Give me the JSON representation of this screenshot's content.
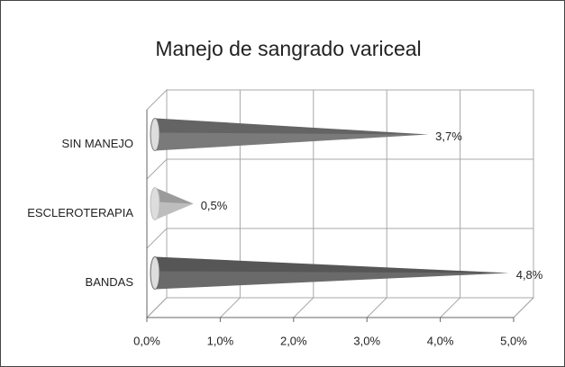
{
  "chart_data": {
    "type": "bar3d-horizontal-cone",
    "title": "Manejo de sangrado variceal",
    "categories": [
      "SIN MANEJO",
      "ESCLEROTERAPIA",
      "BANDAS"
    ],
    "values": [
      3.7,
      0.5,
      4.8
    ],
    "value_labels": [
      "3,7%",
      "0,5%",
      "4,8%"
    ],
    "colors": [
      "#7a7a7a",
      "#bdbdbd",
      "#6a6a6a"
    ],
    "xlim": [
      0,
      5
    ],
    "xticks": [
      {
        "value": 0,
        "label": "0,0%"
      },
      {
        "value": 1,
        "label": "1,0%"
      },
      {
        "value": 2,
        "label": "2,0%"
      },
      {
        "value": 3,
        "label": "3,0%"
      },
      {
        "value": 4,
        "label": "4,0%"
      },
      {
        "value": 5,
        "label": "5,0%"
      }
    ],
    "grid": true
  }
}
